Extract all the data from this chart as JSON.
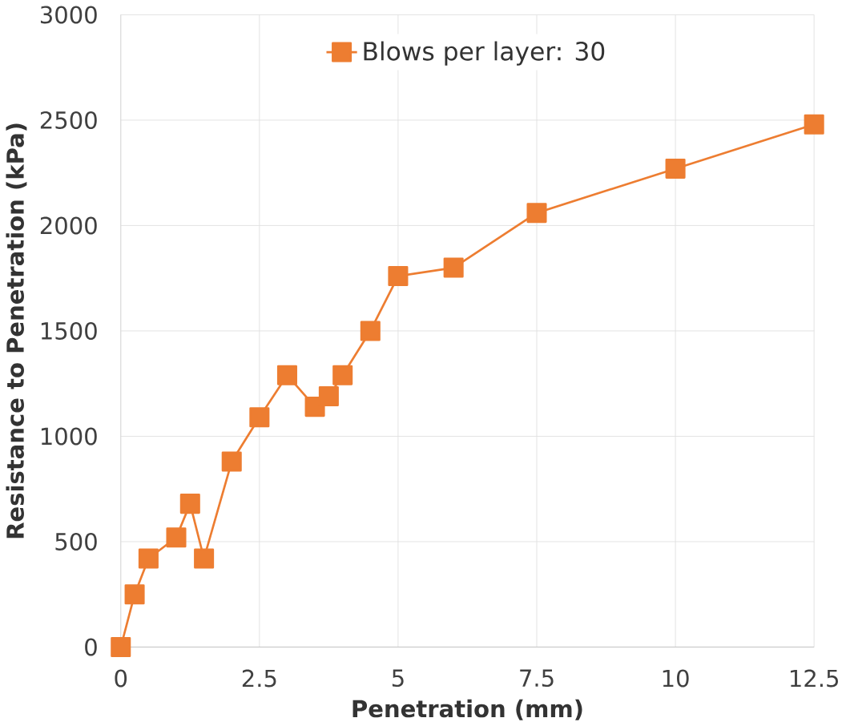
{
  "chart_data": {
    "type": "line",
    "xlabel": "Penetration (mm)",
    "ylabel": "Resistance to Penetration (kPa)",
    "x": [
      0,
      0.25,
      0.5,
      1.0,
      1.25,
      1.5,
      2,
      2.5,
      3,
      3.5,
      3.75,
      4,
      4.5,
      5,
      6,
      7.5,
      10,
      12.5
    ],
    "series": [
      {
        "name": "Blows per layer: 30",
        "color": "#ed7d31",
        "values": [
          0,
          250,
          420,
          520,
          680,
          420,
          880,
          1090,
          1290,
          1140,
          1190,
          1290,
          1500,
          1760,
          1800,
          2060,
          2270,
          2480
        ]
      }
    ],
    "xlim": [
      0,
      12.5
    ],
    "xticks": [
      0,
      2.5,
      5,
      7.5,
      10,
      12.5
    ],
    "ylim": [
      0,
      3000
    ],
    "yticks": [
      0,
      500,
      1000,
      1500,
      2000,
      2500,
      3000
    ],
    "grid": true,
    "legend": "top",
    "marker": "square",
    "line_style": "solid"
  }
}
